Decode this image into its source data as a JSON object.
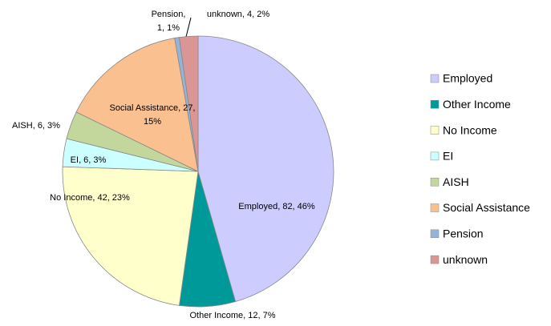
{
  "chart_data": {
    "type": "pie",
    "categories": [
      "Employed",
      "Other Income",
      "No Income",
      "EI",
      "AISH",
      "Social Assistance",
      "Pension",
      "unknown"
    ],
    "values": [
      82,
      12,
      42,
      6,
      6,
      27,
      1,
      4
    ],
    "value_labels": [
      [
        "Employed, 82, 46%"
      ],
      [
        "Other Income, 12, 7%"
      ],
      [
        "No Income, 42, 23%"
      ],
      [
        "EI, 6, 3%"
      ],
      [
        "AISH, 6, 3%"
      ],
      [
        "Social Assistance, 27,",
        "15%"
      ],
      [
        "Pension,",
        "1, 1%"
      ],
      [
        "unknown, 4, 2%"
      ]
    ],
    "colors": [
      "#ccccff",
      "#009999",
      "#ffffcc",
      "#ccffff",
      "#c3d69b",
      "#fac090",
      "#95b3d7",
      "#d99694"
    ],
    "legend": "right"
  }
}
